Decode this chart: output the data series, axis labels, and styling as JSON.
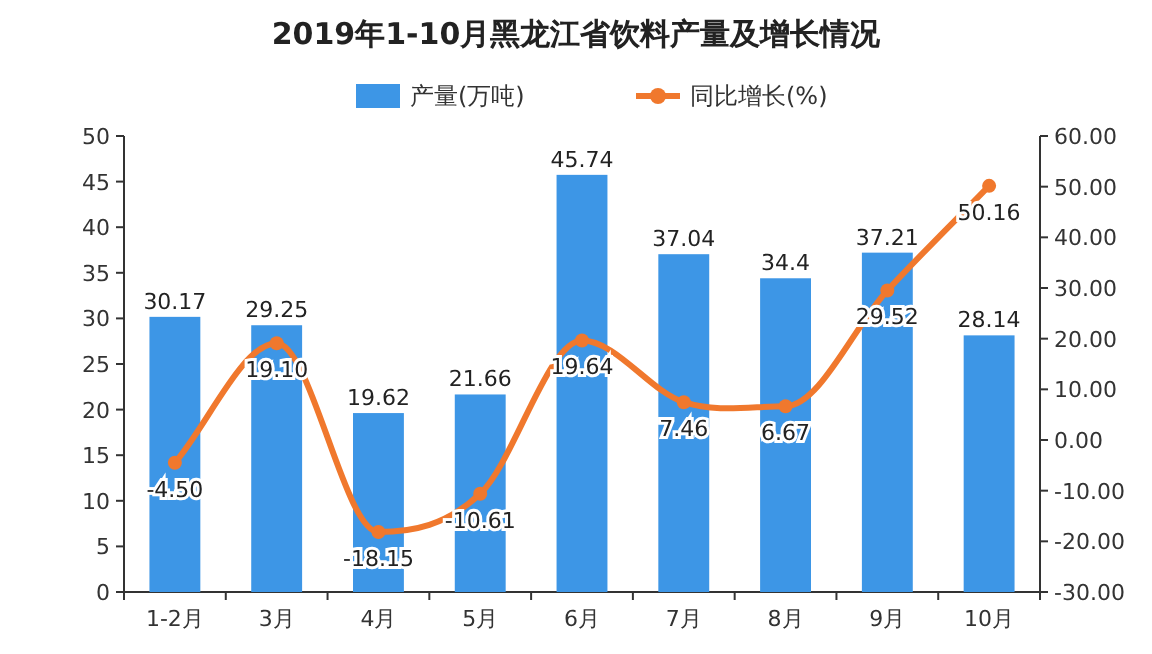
{
  "chart_data": {
    "type": "bar",
    "title": "2019年1-10月黑龙江省饮料产量及增长情况",
    "categories": [
      "1-2月",
      "3月",
      "4月",
      "5月",
      "6月",
      "7月",
      "8月",
      "9月",
      "10月"
    ],
    "series": [
      {
        "name": "产量(万吨)",
        "color": "#3d96e6",
        "values": [
          30.17,
          29.25,
          19.62,
          21.66,
          45.74,
          37.04,
          34.4,
          37.21,
          28.14
        ],
        "value_labels": [
          "30.17",
          "29.25",
          "19.62",
          "21.66",
          "45.74",
          "37.04",
          "34.4",
          "37.21",
          "28.14"
        ]
      },
      {
        "name": "同比增长(%)",
        "type": "line",
        "axis": "y2",
        "color": "#f0782d",
        "marker": "circle",
        "values": [
          -4.5,
          19.1,
          -18.15,
          -10.61,
          19.64,
          7.46,
          6.67,
          29.52,
          50.16
        ],
        "value_labels": [
          "-4.50",
          "19.10",
          "-18.15",
          "-10.61",
          "19.64",
          "7.46",
          "6.67",
          "29.52",
          "50.16"
        ]
      }
    ],
    "ylim": [
      0,
      50
    ],
    "yticks": [
      0,
      5,
      10,
      15,
      20,
      25,
      30,
      35,
      40,
      45,
      50
    ],
    "y2lim": [
      -30,
      60
    ],
    "y2ticks": [
      {
        "value": -30,
        "label": "-30.00"
      },
      {
        "value": -20,
        "label": "-20.00"
      },
      {
        "value": -10,
        "label": "-10.00"
      },
      {
        "value": 0,
        "label": "0.00"
      },
      {
        "value": 10,
        "label": "10.00"
      },
      {
        "value": 20,
        "label": "20.00"
      },
      {
        "value": 30,
        "label": "30.00"
      },
      {
        "value": 40,
        "label": "40.00"
      },
      {
        "value": 50,
        "label": "50.00"
      },
      {
        "value": 60,
        "label": "60.00"
      }
    ],
    "legend": "top",
    "grid": false
  }
}
